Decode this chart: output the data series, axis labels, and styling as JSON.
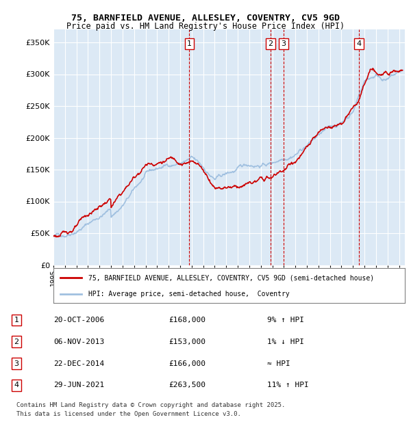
{
  "title_line1": "75, BARNFIELD AVENUE, ALLESLEY, COVENTRY, CV5 9GD",
  "title_line2": "Price paid vs. HM Land Registry's House Price Index (HPI)",
  "background_color": "#dce9f5",
  "plot_bg_color": "#dce9f5",
  "line1_color": "#cc0000",
  "line2_color": "#a0c0e0",
  "yticks": [
    0,
    50000,
    100000,
    150000,
    200000,
    250000,
    300000,
    350000
  ],
  "xlim_start": 1995.0,
  "xlim_end": 2025.5,
  "ylim_min": 0,
  "ylim_max": 370000,
  "sales": [
    {
      "num": 1,
      "year": 2006.8,
      "price": 168000,
      "date": "20-OCT-2006",
      "pct": "9% ↑ HPI"
    },
    {
      "num": 2,
      "year": 2013.85,
      "price": 153000,
      "date": "06-NOV-2013",
      "pct": "1% ↓ HPI"
    },
    {
      "num": 3,
      "year": 2014.97,
      "price": 166000,
      "date": "22-DEC-2014",
      "pct": "≈ HPI"
    },
    {
      "num": 4,
      "year": 2021.5,
      "price": 263500,
      "date": "29-JUN-2021",
      "pct": "11% ↑ HPI"
    }
  ],
  "legend_line1": "75, BARNFIELD AVENUE, ALLESLEY, COVENTRY, CV5 9GD (semi-detached house)",
  "legend_line2": "HPI: Average price, semi-detached house,  Coventry",
  "footer1": "Contains HM Land Registry data © Crown copyright and database right 2025.",
  "footer2": "This data is licensed under the Open Government Licence v3.0.",
  "table": [
    {
      "num": 1,
      "date": "20-OCT-2006",
      "price": "£168,000",
      "pct": "9% ↑ HPI"
    },
    {
      "num": 2,
      "date": "06-NOV-2013",
      "price": "£153,000",
      "pct": "1% ↓ HPI"
    },
    {
      "num": 3,
      "date": "22-DEC-2014",
      "price": "£166,000",
      "pct": "≈ HPI"
    },
    {
      "num": 4,
      "date": "29-JUN-2021",
      "price": "£263,500",
      "pct": "11% ↑ HPI"
    }
  ]
}
